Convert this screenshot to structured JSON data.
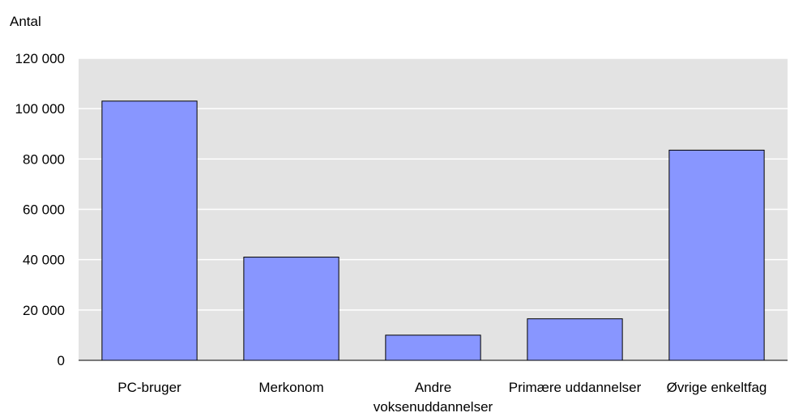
{
  "chart_data": {
    "type": "bar",
    "ylabel": "Antal",
    "categories": [
      "PC-bruger",
      "Merkonom",
      "Andre voksenuddannelser",
      "Primære uddannelser",
      "Øvrige enkeltfag"
    ],
    "category_lines": [
      [
        "PC-bruger"
      ],
      [
        "Merkonom"
      ],
      [
        "Andre",
        "voksenuddannelser"
      ],
      [
        "Primære uddannelser"
      ],
      [
        "Øvrige enkeltfag"
      ]
    ],
    "values": [
      103000,
      41000,
      10000,
      16500,
      83500
    ],
    "ylim": [
      0,
      120000
    ],
    "yticks": [
      0,
      20000,
      40000,
      60000,
      80000,
      100000,
      120000
    ],
    "ytick_labels": [
      "0",
      "20 000",
      "40 000",
      "60 000",
      "80 000",
      "100 000",
      "120 000"
    ],
    "grid": true,
    "colors": {
      "bar": "#8896ff",
      "bar_border": "#000000",
      "plot_bg": "#e3e3e3",
      "grid": "#ffffff"
    }
  }
}
